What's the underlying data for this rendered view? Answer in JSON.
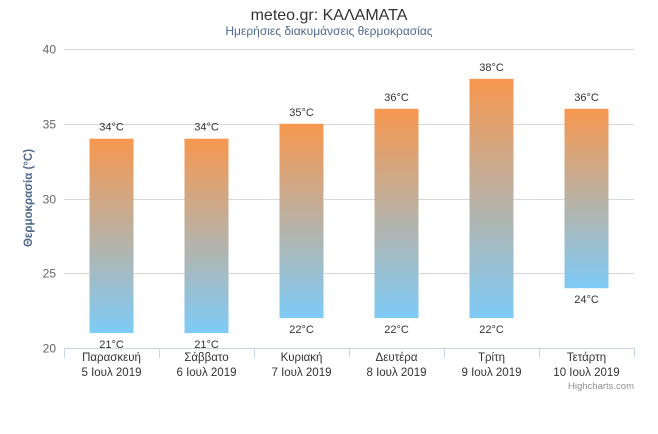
{
  "chart_data": {
    "type": "bar",
    "subtype": "columnrange",
    "title": "meteo.gr: ΚΑΛΑΜΑΤΑ",
    "subtitle": "Ημερήσιες διακυμάνσεις θερμοκρασίας",
    "ylabel": "Θερμοκρασία (°C)",
    "ylim": [
      20,
      40
    ],
    "yticks": [
      20,
      25,
      30,
      35,
      40
    ],
    "grid": true,
    "legend": "none",
    "categories": [
      [
        "Παρασκευή",
        "5 Ιουλ 2019"
      ],
      [
        "Σάββατο",
        "6 Ιουλ 2019"
      ],
      [
        "Κυριακή",
        "7 Ιουλ 2019"
      ],
      [
        "Δευτέρα",
        "8 Ιουλ 2019"
      ],
      [
        "Τρίτη",
        "9 Ιουλ 2019"
      ],
      [
        "Τετάρτη",
        "10 Ιουλ 2019"
      ]
    ],
    "low": [
      21,
      21,
      22,
      22,
      22,
      24
    ],
    "high": [
      34,
      34,
      35,
      36,
      38,
      36
    ],
    "unit": "°C",
    "colors": {
      "top": "#f7974f",
      "bottom": "#7ecbf7"
    }
  },
  "credits": "Highcharts.com"
}
